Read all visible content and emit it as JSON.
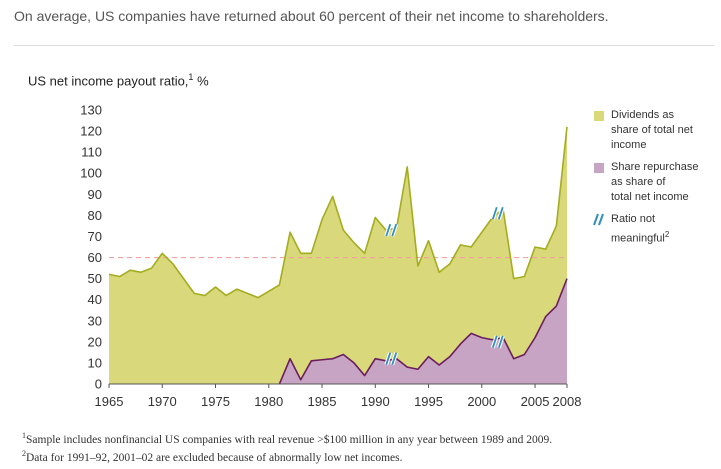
{
  "headline": "On average, US companies have returned about 60 percent of their net income to shareholders.",
  "chart_title": "US net income payout ratio,",
  "chart_title_note": "1",
  "chart_title_unit": "%",
  "footnotes": [
    {
      "mark": "1",
      "text": "Sample includes nonfinancial US companies with real revenue >$100 million in any year between 1989 and 2009."
    },
    {
      "mark": "2",
      "text": "Data for 1991–92, 2001–02 are excluded because of abnormally low net incomes."
    }
  ],
  "colors": {
    "dividends": "#d9d87a",
    "dividends_line": "#a3ad1e",
    "repurchase": "#c7a3c4",
    "repurchase_line": "#6b1e5d",
    "average_line": "#f0a3a0",
    "break_mark": "#2f8fbf"
  },
  "chart_data": {
    "type": "area",
    "title": "US net income payout ratio, %",
    "xlabel": "",
    "ylabel": "%",
    "xlim": [
      1965,
      2008
    ],
    "ylim": [
      0,
      130
    ],
    "y_ticks": [
      0,
      10,
      20,
      30,
      40,
      50,
      60,
      70,
      80,
      90,
      100,
      110,
      120,
      130
    ],
    "x_ticks": [
      1965,
      1970,
      1975,
      1980,
      1985,
      1990,
      1995,
      2000,
      2005,
      2008
    ],
    "reference_line": {
      "value": 60,
      "style": "dashed"
    },
    "series": [
      {
        "name": "Dividends as share of total net income",
        "legend_lines": [
          "Dividends as",
          "share of total net",
          "income"
        ],
        "x": [
          1965,
          1966,
          1967,
          1968,
          1969,
          1970,
          1971,
          1972,
          1973,
          1974,
          1975,
          1976,
          1977,
          1978,
          1979,
          1980,
          1981,
          1982,
          1983,
          1984,
          1985,
          1986,
          1987,
          1988,
          1989,
          1990,
          1991,
          1992,
          1993,
          1994,
          1995,
          1996,
          1997,
          1998,
          1999,
          2000,
          2001,
          2002,
          2003,
          2004,
          2005,
          2006,
          2007,
          2008
        ],
        "values": [
          52,
          51,
          54,
          53,
          55,
          62,
          57,
          50,
          43,
          42,
          46,
          42,
          45,
          43,
          41,
          44,
          47,
          72,
          62,
          62,
          78,
          89,
          73,
          67,
          62,
          79,
          73,
          74,
          103,
          56,
          68,
          53,
          57,
          66,
          65,
          72,
          79,
          83,
          50,
          51,
          65,
          64,
          75,
          122
        ]
      },
      {
        "name": "Share repurchase as share of total net income",
        "legend_lines": [
          "Share repurchase",
          "as share of",
          "total net income"
        ],
        "x": [
          1965,
          1966,
          1967,
          1968,
          1969,
          1970,
          1971,
          1972,
          1973,
          1974,
          1975,
          1976,
          1977,
          1978,
          1979,
          1980,
          1981,
          1982,
          1983,
          1984,
          1985,
          1986,
          1987,
          1988,
          1989,
          1990,
          1991,
          1992,
          1993,
          1994,
          1995,
          1996,
          1997,
          1998,
          1999,
          2000,
          2001,
          2002,
          2003,
          2004,
          2005,
          2006,
          2007,
          2008
        ],
        "values": [
          0,
          0,
          0,
          0,
          0,
          0,
          0,
          0,
          0,
          0,
          0,
          0,
          0,
          0,
          0,
          0,
          0,
          12,
          2,
          11,
          11.5,
          12,
          14,
          10,
          4,
          12,
          11,
          12,
          8,
          7,
          13,
          9,
          13,
          19,
          24,
          22,
          21,
          22,
          12,
          14,
          22,
          32,
          37,
          50
        ]
      }
    ],
    "legend": {
      "position": "right",
      "break_label_lines": [
        "Ratio not",
        "meaningful"
      ],
      "break_label_note": "2"
    },
    "breaks": [
      {
        "x": 1991.5,
        "dividends": 73,
        "repurchase": 12
      },
      {
        "x": 2001.5,
        "dividends": 81,
        "repurchase": 20
      }
    ]
  }
}
